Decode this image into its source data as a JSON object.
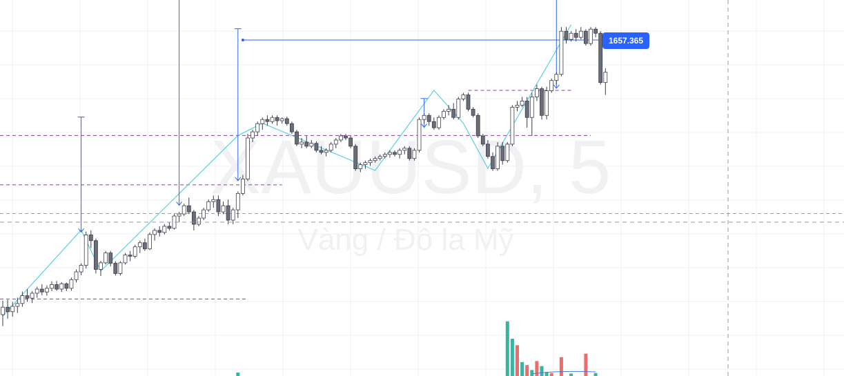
{
  "chart_data": {
    "type": "candlestick",
    "symbol": "XAUUSD, 5",
    "description": "Vàng / Đô la Mỹ",
    "price_label": "1657.365",
    "colors": {
      "candle_up_body": "#ffffff",
      "candle_down_body": "#6b6e78",
      "candle_outline": "#3a3d47",
      "zigzag": "#5ad0e0",
      "measure": "#2962ff",
      "dashed_level": "#8e3ea8",
      "grid": "#eef0f3",
      "crosshair": "#9598a1",
      "volume_up": "#3ab3a1",
      "volume_down": "#ef6b6b",
      "price_label_bg": "#2962ff"
    },
    "candles": [
      [
        1608.4,
        1611.8,
        1605.6,
        1610.2
      ],
      [
        1610.2,
        1612.0,
        1607.4,
        1609.1
      ],
      [
        1609.1,
        1611.5,
        1607.9,
        1610.4
      ],
      [
        1610.4,
        1612.5,
        1608.8,
        1611.1
      ],
      [
        1611.1,
        1614.0,
        1610.3,
        1613.0
      ],
      [
        1613.0,
        1614.6,
        1611.5,
        1612.4
      ],
      [
        1612.4,
        1614.1,
        1611.2,
        1613.6
      ],
      [
        1613.6,
        1615.2,
        1612.5,
        1614.6
      ],
      [
        1614.6,
        1615.8,
        1613.1,
        1613.9
      ],
      [
        1613.9,
        1615.5,
        1613.0,
        1614.8
      ],
      [
        1614.8,
        1616.5,
        1614.1,
        1615.7
      ],
      [
        1615.7,
        1616.6,
        1614.2,
        1614.6
      ],
      [
        1614.6,
        1616.3,
        1613.9,
        1615.9
      ],
      [
        1615.9,
        1616.2,
        1614.1,
        1614.8
      ],
      [
        1614.8,
        1617.4,
        1614.2,
        1616.9
      ],
      [
        1616.9,
        1619.4,
        1616.2,
        1618.8
      ],
      [
        1618.8,
        1620.9,
        1618.0,
        1620.4
      ],
      [
        1620.4,
        1628.6,
        1619.6,
        1627.8
      ],
      [
        1627.8,
        1628.9,
        1624.6,
        1626.4
      ],
      [
        1626.4,
        1626.9,
        1618.4,
        1619.4
      ],
      [
        1619.4,
        1621.5,
        1617.8,
        1621.0
      ],
      [
        1621.0,
        1623.9,
        1620.6,
        1623.4
      ],
      [
        1623.4,
        1623.9,
        1620.1,
        1620.9
      ],
      [
        1620.9,
        1621.4,
        1617.9,
        1618.4
      ],
      [
        1618.4,
        1621.4,
        1617.9,
        1621.0
      ],
      [
        1621.0,
        1623.4,
        1620.6,
        1622.9
      ],
      [
        1622.9,
        1623.9,
        1621.4,
        1622.6
      ],
      [
        1622.6,
        1625.4,
        1622.1,
        1624.9
      ],
      [
        1624.9,
        1626.4,
        1623.4,
        1625.9
      ],
      [
        1625.9,
        1626.9,
        1623.9,
        1624.4
      ],
      [
        1624.4,
        1628.4,
        1624.1,
        1627.9
      ],
      [
        1627.9,
        1629.4,
        1626.4,
        1628.9
      ],
      [
        1628.9,
        1629.9,
        1627.4,
        1628.4
      ],
      [
        1628.4,
        1630.4,
        1627.9,
        1629.9
      ],
      [
        1629.9,
        1630.9,
        1628.9,
        1629.4
      ],
      [
        1629.4,
        1632.9,
        1629.1,
        1632.4
      ],
      [
        1632.4,
        1633.4,
        1630.9,
        1632.9
      ],
      [
        1632.9,
        1635.4,
        1632.4,
        1634.9
      ],
      [
        1634.9,
        1636.9,
        1632.9,
        1633.4
      ],
      [
        1633.4,
        1633.9,
        1628.9,
        1630.4
      ],
      [
        1630.4,
        1632.4,
        1629.9,
        1631.9
      ],
      [
        1631.9,
        1634.4,
        1631.4,
        1633.9
      ],
      [
        1633.9,
        1636.4,
        1633.4,
        1635.9
      ],
      [
        1635.9,
        1637.4,
        1634.4,
        1636.4
      ],
      [
        1636.4,
        1637.4,
        1632.4,
        1633.4
      ],
      [
        1633.4,
        1635.9,
        1632.9,
        1634.9
      ],
      [
        1634.9,
        1636.4,
        1630.4,
        1631.4
      ],
      [
        1631.4,
        1634.4,
        1630.4,
        1633.9
      ],
      [
        1633.9,
        1638.4,
        1631.9,
        1637.9
      ],
      [
        1637.9,
        1642.4,
        1637.4,
        1641.4
      ],
      [
        1641.4,
        1652.4,
        1640.9,
        1651.4
      ],
      [
        1651.4,
        1653.4,
        1650.4,
        1652.9
      ],
      [
        1652.9,
        1655.4,
        1651.9,
        1654.9
      ],
      [
        1654.9,
        1656.4,
        1653.4,
        1655.9
      ],
      [
        1655.9,
        1656.9,
        1654.4,
        1655.4
      ],
      [
        1655.4,
        1656.9,
        1654.9,
        1656.4
      ],
      [
        1656.4,
        1656.9,
        1654.4,
        1655.6
      ],
      [
        1655.6,
        1656.4,
        1654.9,
        1656.1
      ],
      [
        1656.1,
        1656.6,
        1654.4,
        1654.9
      ],
      [
        1654.9,
        1655.4,
        1652.4,
        1652.9
      ],
      [
        1652.9,
        1653.4,
        1649.4,
        1649.9
      ],
      [
        1649.9,
        1651.4,
        1648.9,
        1650.4
      ],
      [
        1650.4,
        1651.9,
        1648.9,
        1649.4
      ],
      [
        1649.4,
        1650.9,
        1648.9,
        1650.1
      ],
      [
        1650.1,
        1650.6,
        1647.9,
        1648.4
      ],
      [
        1648.4,
        1649.4,
        1647.4,
        1647.9
      ],
      [
        1647.9,
        1648.9,
        1646.9,
        1648.4
      ],
      [
        1648.4,
        1650.4,
        1647.9,
        1649.9
      ],
      [
        1649.9,
        1651.4,
        1648.9,
        1650.9
      ],
      [
        1650.9,
        1652.4,
        1650.4,
        1651.9
      ],
      [
        1651.9,
        1652.4,
        1650.9,
        1651.4
      ],
      [
        1651.4,
        1651.9,
        1648.9,
        1649.4
      ],
      [
        1649.4,
        1649.9,
        1643.4,
        1643.9
      ],
      [
        1643.9,
        1645.4,
        1643.1,
        1644.9
      ],
      [
        1644.9,
        1645.9,
        1643.9,
        1645.4
      ],
      [
        1645.4,
        1646.4,
        1644.6,
        1645.9
      ],
      [
        1645.9,
        1646.9,
        1645.4,
        1646.4
      ],
      [
        1646.4,
        1647.4,
        1645.9,
        1646.9
      ],
      [
        1646.9,
        1647.9,
        1646.4,
        1647.4
      ],
      [
        1647.4,
        1648.4,
        1646.6,
        1647.9
      ],
      [
        1647.9,
        1648.4,
        1646.9,
        1647.4
      ],
      [
        1647.4,
        1648.9,
        1646.4,
        1648.4
      ],
      [
        1648.4,
        1649.4,
        1647.4,
        1648.9
      ],
      [
        1648.9,
        1649.4,
        1645.9,
        1646.4
      ],
      [
        1646.4,
        1648.9,
        1645.9,
        1648.4
      ],
      [
        1648.4,
        1656.4,
        1647.9,
        1655.9
      ],
      [
        1655.9,
        1657.4,
        1654.9,
        1656.9
      ],
      [
        1656.9,
        1657.4,
        1654.4,
        1655.4
      ],
      [
        1655.4,
        1656.4,
        1653.4,
        1653.9
      ],
      [
        1653.9,
        1656.9,
        1653.4,
        1656.4
      ],
      [
        1656.4,
        1658.4,
        1655.9,
        1657.9
      ],
      [
        1657.9,
        1659.4,
        1656.9,
        1658.4
      ],
      [
        1658.4,
        1659.9,
        1655.9,
        1656.4
      ],
      [
        1656.4,
        1661.4,
        1655.9,
        1660.9
      ],
      [
        1660.9,
        1662.4,
        1660.4,
        1661.9
      ],
      [
        1661.9,
        1662.4,
        1657.9,
        1658.4
      ],
      [
        1658.4,
        1658.9,
        1656.4,
        1656.9
      ],
      [
        1656.9,
        1657.4,
        1651.4,
        1651.9
      ],
      [
        1651.9,
        1652.4,
        1649.4,
        1649.9
      ],
      [
        1649.9,
        1650.9,
        1646.4,
        1646.9
      ],
      [
        1646.9,
        1647.9,
        1643.4,
        1643.9
      ],
      [
        1643.9,
        1650.4,
        1643.4,
        1649.4
      ],
      [
        1649.4,
        1650.4,
        1644.9,
        1645.9
      ],
      [
        1645.9,
        1650.4,
        1645.4,
        1649.9
      ],
      [
        1649.9,
        1659.4,
        1649.4,
        1658.9
      ],
      [
        1658.9,
        1660.4,
        1657.9,
        1659.4
      ],
      [
        1659.4,
        1661.4,
        1658.9,
        1660.4
      ],
      [
        1660.4,
        1661.4,
        1653.9,
        1656.4
      ],
      [
        1656.4,
        1662.4,
        1651.9,
        1661.4
      ],
      [
        1661.4,
        1664.4,
        1660.4,
        1663.4
      ],
      [
        1663.4,
        1663.9,
        1655.9,
        1656.9
      ],
      [
        1656.9,
        1663.9,
        1655.9,
        1662.9
      ],
      [
        1662.9,
        1665.9,
        1662.4,
        1665.4
      ],
      [
        1665.4,
        1667.4,
        1664.4,
        1666.9
      ],
      [
        1666.9,
        1678.4,
        1666.4,
        1677.4
      ],
      [
        1677.4,
        1678.4,
        1674.4,
        1675.4
      ],
      [
        1675.4,
        1677.4,
        1674.9,
        1676.9
      ],
      [
        1676.9,
        1677.9,
        1674.9,
        1675.9
      ],
      [
        1675.9,
        1678.4,
        1675.4,
        1677.4
      ],
      [
        1677.4,
        1677.9,
        1673.9,
        1674.4
      ],
      [
        1674.4,
        1678.4,
        1673.9,
        1677.9
      ],
      [
        1677.9,
        1678.4,
        1675.9,
        1676.9
      ],
      [
        1676.9,
        1677.4,
        1664.4,
        1664.9
      ],
      [
        1664.9,
        1668.4,
        1661.9,
        1667.4
      ]
    ],
    "volumes": [
      {
        "i": 103,
        "v": 1.1,
        "dir": "up"
      },
      {
        "i": 104,
        "v": 0.75,
        "dir": "up"
      },
      {
        "i": 105,
        "v": 0.62,
        "dir": "down"
      },
      {
        "i": 106,
        "v": 0.28,
        "dir": "up"
      },
      {
        "i": 107,
        "v": 0.22,
        "dir": "down"
      },
      {
        "i": 108,
        "v": 0.12,
        "dir": "up"
      },
      {
        "i": 109,
        "v": 0.3,
        "dir": "down"
      },
      {
        "i": 110,
        "v": 0.2,
        "dir": "up"
      },
      {
        "i": 111,
        "v": 0.08,
        "dir": "up"
      },
      {
        "i": 112,
        "v": 0.06,
        "dir": "down"
      },
      {
        "i": 114,
        "v": 0.38,
        "dir": "down"
      },
      {
        "i": 116,
        "v": 0.05,
        "dir": "up"
      },
      {
        "i": 119,
        "v": 0.45,
        "dir": "down"
      },
      {
        "i": 121,
        "v": 0.06,
        "dir": "up"
      },
      {
        "i": 48,
        "v": 0.07,
        "dir": "up"
      }
    ],
    "zigzag": [
      [
        0,
        1608.0
      ],
      [
        16,
        1629.0
      ],
      [
        20,
        1619.0
      ],
      [
        48,
        1652.0
      ],
      [
        53,
        1655.0
      ],
      [
        76,
        1643.5
      ],
      [
        88,
        1663.0
      ],
      [
        94,
        1655.0
      ],
      [
        99,
        1644.0
      ],
      [
        116,
        1679.0
      ]
    ],
    "levels": [
      1652.0,
      1640.0,
      1633.0,
      1612.2,
      1663.0
    ],
    "measures": [
      {
        "i": 16,
        "from": 1656.5,
        "to": 1628.5
      },
      {
        "i": 36,
        "from": 1699.0,
        "to": 1635.0
      },
      {
        "i": 48,
        "from": 1678.0,
        "to": 1641.0
      },
      {
        "i": 86,
        "from": 1661.0,
        "to": 1654.0
      },
      {
        "i": 113,
        "from": 1699.0,
        "to": 1663.5
      }
    ],
    "ylim": [
      1601.0,
      1685.0
    ],
    "grid": true
  }
}
